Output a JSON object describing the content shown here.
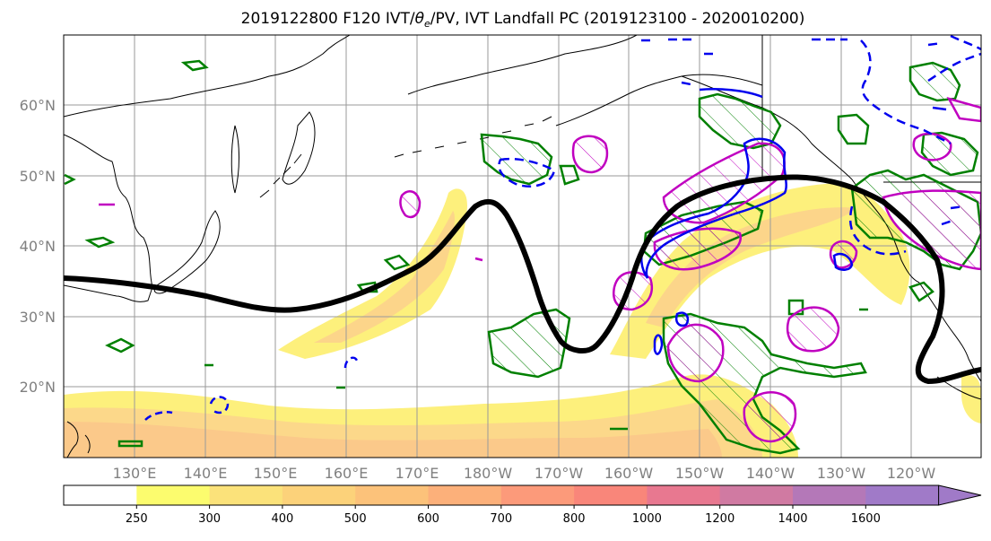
{
  "chart_data": {
    "type": "map",
    "title": "2019122800 F120 IVT/θₑ/PV, IVT Landfall PC (2019123100 - 2020010200)",
    "title_parts": {
      "prefix": "2019122800 F120 IVT/",
      "theta": "θ",
      "sub": "e",
      "suffix": "/PV, IVT Landfall PC (2019123100 - 2020010200)"
    },
    "lat_labels": [
      "60°N",
      "50°N",
      "40°N",
      "30°N",
      "20°N"
    ],
    "lat_values": [
      60,
      50,
      40,
      30,
      20
    ],
    "lon_labels": [
      "130°E",
      "140°E",
      "150°E",
      "160°E",
      "170°E",
      "180°W",
      "170°W",
      "160°W",
      "150°W",
      "140°W",
      "130°W",
      "120°W"
    ],
    "lon_values": [
      130,
      140,
      150,
      160,
      170,
      180,
      190,
      200,
      210,
      220,
      230,
      240
    ],
    "lat_range": [
      10,
      70
    ],
    "lon_range": [
      120,
      250
    ],
    "grid": true,
    "colorbar": {
      "levels": [
        250,
        300,
        400,
        500,
        600,
        700,
        800,
        1000,
        1200,
        1400,
        1600
      ],
      "tick_labels": [
        "250",
        "300",
        "400",
        "500",
        "600",
        "700",
        "800",
        "1000",
        "1200",
        "1400",
        "1600"
      ],
      "colors": [
        "#ffffff",
        "#fcfc6e",
        "#fbe27a",
        "#fcd27a",
        "#fcc27a",
        "#fcb07a",
        "#fc9a7a",
        "#f9867a",
        "#e87890",
        "#d07aa2",
        "#b478b8",
        "#a07ac8"
      ],
      "extend": "max"
    },
    "ivt_band": {
      "levels": [
        250,
        300,
        400,
        500,
        600
      ],
      "colors": [
        "#fdf27e",
        "#fde2a0",
        "#fbd3a3",
        "#f9c7a0",
        "#f7bb9a"
      ]
    },
    "contours": {
      "jet_axis_color": "#000000",
      "theta_e_color": "#008000",
      "pv_color": "#c000c0",
      "pv_dashed_color": "#0000ee"
    }
  }
}
